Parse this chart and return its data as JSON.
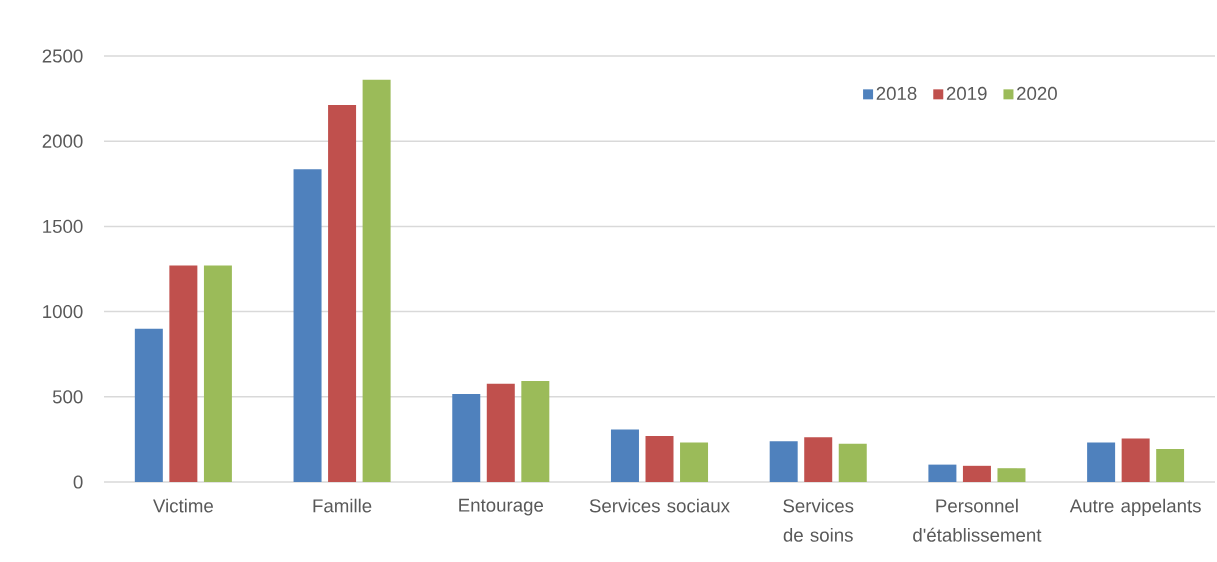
{
  "chart_data": {
    "type": "bar",
    "categories": [
      "Victime",
      "Famille",
      "Entourage",
      "Services sociaux",
      "Services de soins",
      "Personnel d'établissement",
      "Autre appelants"
    ],
    "series": [
      {
        "name": "2018",
        "color": "#4f81bd",
        "values": [
          900,
          1835,
          516,
          308,
          239,
          102,
          232
        ]
      },
      {
        "name": "2019",
        "color": "#c0504d",
        "values": [
          1270,
          2212,
          577,
          270,
          263,
          95,
          256
        ]
      },
      {
        "name": "2020",
        "color": "#9bbb59",
        "values": [
          1270,
          2361,
          593,
          232,
          225,
          81,
          194
        ]
      }
    ],
    "ylim": [
      0,
      2500
    ],
    "yticks": [
      0,
      500,
      1000,
      1500,
      2000,
      2500
    ],
    "grid": "y",
    "legend": "top right"
  }
}
